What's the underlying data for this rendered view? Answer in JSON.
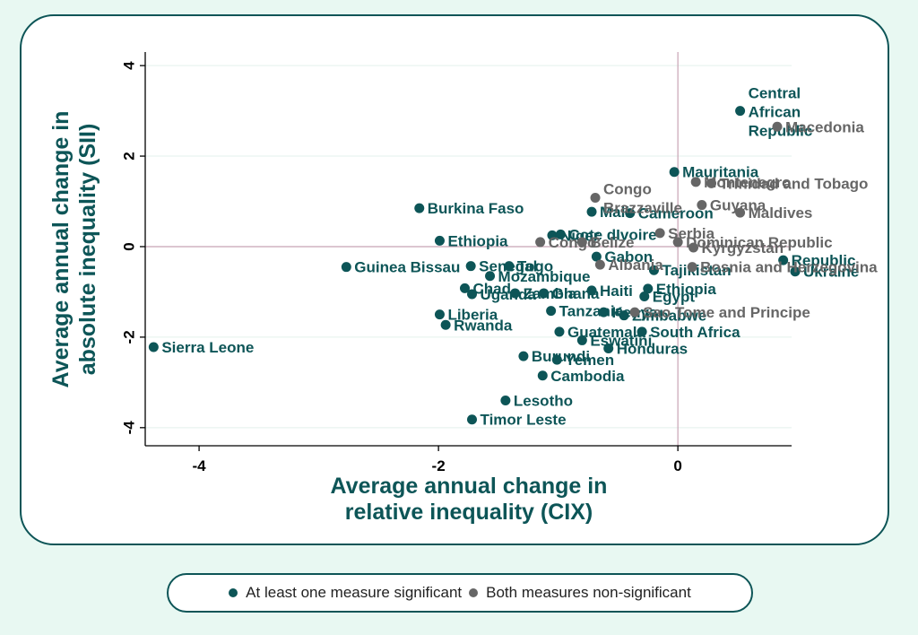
{
  "chart_data": {
    "type": "scatter",
    "xlabel": [
      "Average annual change in",
      "relative inequality (CIX)"
    ],
    "ylabel": [
      "Average annual change in",
      "absolute inequality (SII)"
    ],
    "xlim": [
      -4.45,
      0.95
    ],
    "ylim": [
      -4.4,
      4.3
    ],
    "xticks": [
      -4,
      -2,
      0
    ],
    "yticks": [
      4,
      2,
      0,
      -2,
      -4
    ],
    "xtick_labels": [
      "-4",
      "-2",
      "0"
    ],
    "ytick_labels": [
      "4",
      "2",
      "0",
      "-2",
      "-4"
    ],
    "reference_lines": {
      "x": 0,
      "y": 0
    },
    "colors": {
      "significant": "#0d5557",
      "nonsignificant": "#666666",
      "refline": "#c8a4b4",
      "grid": "#e3f1ec"
    },
    "series": [
      {
        "name": "At least one measure significant",
        "key": "significant",
        "points": [
          {
            "label": "Central African Republic",
            "x": 0.52,
            "y": 3.0,
            "label_lines": [
              "Central",
              "African",
              "Republic"
            ]
          },
          {
            "label": "Mauritania",
            "x": -0.03,
            "y": 1.65
          },
          {
            "label": "Burkina Faso",
            "x": -2.16,
            "y": 0.85
          },
          {
            "label": "Mali",
            "x": -0.72,
            "y": 0.77
          },
          {
            "label": "Cameroon",
            "x": -0.4,
            "y": 0.74
          },
          {
            "label": "Niger",
            "x": -1.05,
            "y": 0.25
          },
          {
            "label": "Cote dIvoire",
            "x": -0.98,
            "y": 0.27
          },
          {
            "label": "Ethiopia",
            "x": -1.99,
            "y": 0.13
          },
          {
            "label": "Gabon",
            "x": -0.68,
            "y": -0.22
          },
          {
            "label": "Guinea Bissau",
            "x": -2.77,
            "y": -0.45
          },
          {
            "label": "Senegal",
            "x": -1.73,
            "y": -0.43
          },
          {
            "label": "Togo",
            "x": -1.41,
            "y": -0.43
          },
          {
            "label": "Mozambique",
            "x": -1.57,
            "y": -0.65
          },
          {
            "label": "Chad",
            "x": -1.78,
            "y": -0.92
          },
          {
            "label": "Uganda",
            "x": -1.72,
            "y": -1.05
          },
          {
            "label": "Zambia",
            "x": -1.36,
            "y": -1.03
          },
          {
            "label": "Ghana",
            "x": -1.12,
            "y": -1.03
          },
          {
            "label": "Haiti",
            "x": -0.72,
            "y": -0.97
          },
          {
            "label": "Ethiopia",
            "x": -0.25,
            "y": -0.93
          },
          {
            "label": "Egypt",
            "x": -0.28,
            "y": -1.1
          },
          {
            "label": "Liberia",
            "x": -1.99,
            "y": -1.5
          },
          {
            "label": "Rwanda",
            "x": -1.94,
            "y": -1.73
          },
          {
            "label": "Tanzania",
            "x": -1.06,
            "y": -1.42
          },
          {
            "label": "Kenya",
            "x": -0.62,
            "y": -1.45
          },
          {
            "label": "Zimbabwe",
            "x": -0.45,
            "y": -1.52
          },
          {
            "label": "Guatemala",
            "x": -0.99,
            "y": -1.88
          },
          {
            "label": "South Africa",
            "x": -0.3,
            "y": -1.88
          },
          {
            "label": "Eswatini",
            "x": -0.8,
            "y": -2.07
          },
          {
            "label": "Honduras",
            "x": -0.58,
            "y": -2.25
          },
          {
            "label": "Sierra Leone",
            "x": -4.38,
            "y": -2.22
          },
          {
            "label": "Burundi",
            "x": -1.29,
            "y": -2.42
          },
          {
            "label": "Yemen",
            "x": -1.01,
            "y": -2.5
          },
          {
            "label": "Cambodia",
            "x": -1.13,
            "y": -2.85
          },
          {
            "label": "Lesotho",
            "x": -1.44,
            "y": -3.4
          },
          {
            "label": "Timor Leste",
            "x": -1.72,
            "y": -3.82
          },
          {
            "label": "Republic",
            "x": 0.88,
            "y": -0.3
          },
          {
            "label": "Ukraine",
            "x": 0.98,
            "y": -0.55
          },
          {
            "label": "Tajikistan",
            "x": -0.2,
            "y": -0.52
          }
        ]
      },
      {
        "name": "Both measures non-significant",
        "key": "nonsignificant",
        "points": [
          {
            "label": "Macedonia",
            "x": 0.83,
            "y": 2.65
          },
          {
            "label": "Montenegro",
            "x": 0.15,
            "y": 1.43
          },
          {
            "label": "Trinidad and Tobago",
            "x": 0.28,
            "y": 1.4
          },
          {
            "label": "Congo Brazzaville",
            "x": -0.69,
            "y": 1.08,
            "label_lines": [
              "Congo",
              "Brazzaville"
            ]
          },
          {
            "label": "Guyana",
            "x": 0.2,
            "y": 0.92
          },
          {
            "label": "Maldives",
            "x": 0.52,
            "y": 0.75
          },
          {
            "label": "Serbia",
            "x": -0.15,
            "y": 0.3
          },
          {
            "label": "Dominican Republic",
            "x": 0.0,
            "y": 0.1
          },
          {
            "label": "Congo",
            "x": -1.15,
            "y": 0.1
          },
          {
            "label": "Belize",
            "x": -0.8,
            "y": 0.1
          },
          {
            "label": "Kyrgyzstan",
            "x": 0.13,
            "y": -0.02
          },
          {
            "label": "Albania",
            "x": -0.65,
            "y": -0.4
          },
          {
            "label": "Bosnia and Herzegovina",
            "x": 0.12,
            "y": -0.45
          },
          {
            "label": "Sao Tome and Principe",
            "x": -0.36,
            "y": -1.45
          }
        ]
      }
    ],
    "legend": {
      "placement": "bottom-center",
      "items": [
        {
          "key": "significant",
          "label": "At least one measure significant"
        },
        {
          "key": "nonsignificant",
          "label": "Both measures non-significant"
        }
      ]
    }
  }
}
